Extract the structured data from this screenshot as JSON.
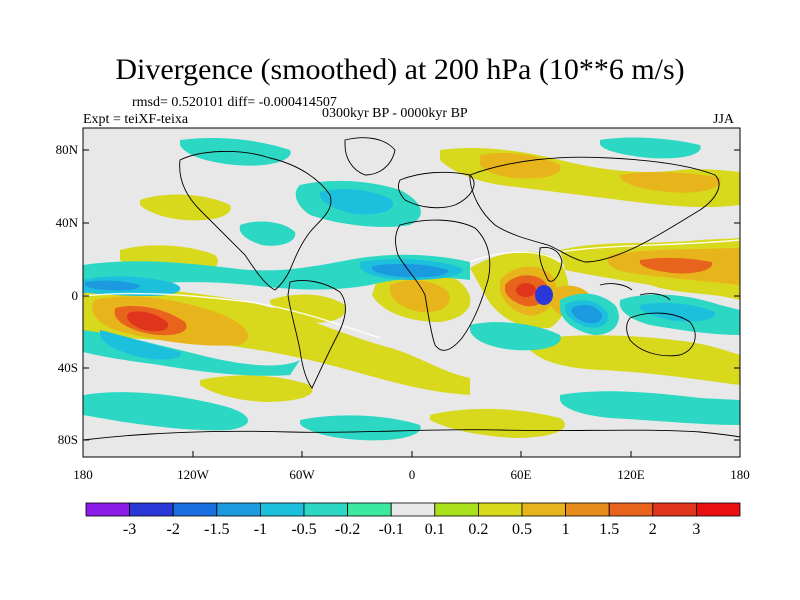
{
  "title": "Divergence (smoothed) at 200 hPa (10**6 m/s)",
  "stats": "rmsd= 0.520101 diff= -0.000414507",
  "experiment": "Expt = teiXF-teixa",
  "period": "0300kyr BP - 0000kyr BP",
  "season": "JJA",
  "colorbar": {
    "labels": [
      "-3",
      "-2",
      "-1.5",
      "-1",
      "-0.5",
      "-0.2",
      "-0.1",
      "0.1",
      "0.2",
      "0.5",
      "1",
      "1.5",
      "2",
      "3"
    ],
    "colors": [
      "#8c1ce8",
      "#2a38d8",
      "#1a6fe0",
      "#1c9ae0",
      "#1cc0dc",
      "#2cd8c4",
      "#3ce8a0",
      "#e8e8e8",
      "#a8e01c",
      "#d8d81c",
      "#e8b41c",
      "#e88c1c",
      "#e8641c",
      "#e0341c",
      "#e81010"
    ]
  },
  "axes": {
    "lon_labels": [
      "180",
      "120W",
      "60W",
      "0",
      "60E",
      "120E",
      "180"
    ],
    "lat_labels": [
      "80N",
      "40N",
      "0",
      "40S",
      "80S"
    ]
  }
}
